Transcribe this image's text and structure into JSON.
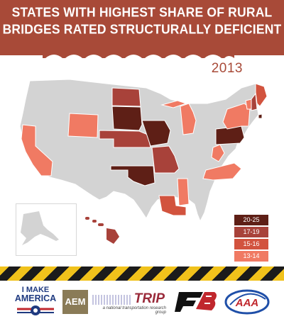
{
  "header": {
    "title_line1": "STATES WITH HIGHEST SHARE OF RURAL",
    "title_line2": "BRIDGES RATED STRUCTURALLY DEFICIENT",
    "year": "2013",
    "banner_color": "#a84a38"
  },
  "colors": {
    "base": "#d3d3d3",
    "tier_20_25": "#5e1f16",
    "tier_17_19": "#a8423a",
    "tier_15_16": "#d2533e",
    "tier_13_14": "#f07a63"
  },
  "legend": [
    {
      "label": "20-25",
      "color": "#5e1f16"
    },
    {
      "label": "17-19",
      "color": "#a8423a"
    },
    {
      "label": "15-16",
      "color": "#d2533e"
    },
    {
      "label": "13-14",
      "color": "#f07a63"
    }
  ],
  "states_by_tier": {
    "20-25": [
      "South Dakota",
      "Iowa",
      "Pennsylvania",
      "Oklahoma",
      "Rhode Island"
    ],
    "17-19": [
      "North Dakota",
      "Nebraska",
      "Missouri",
      "Hawaii",
      "New Hampshire"
    ],
    "15-16": [
      "Louisiana",
      "Maine"
    ],
    "13-14": [
      "California",
      "Wyoming",
      "Michigan",
      "Mississippi",
      "North Carolina",
      "New York",
      "West Virginia",
      "Vermont"
    ]
  },
  "logos": {
    "imake_line1": "I MAKE",
    "imake_line2": "AMERICA",
    "aem": "AEM",
    "trip": "TRIP",
    "trip_tagline": "a national transportation research group"
  }
}
